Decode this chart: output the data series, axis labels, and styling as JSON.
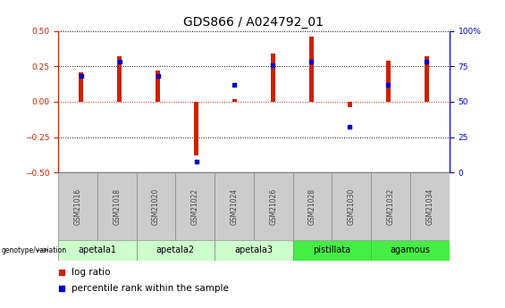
{
  "title": "GDS866 / A024792_01",
  "samples": [
    "GSM21016",
    "GSM21018",
    "GSM21020",
    "GSM21022",
    "GSM21024",
    "GSM21026",
    "GSM21028",
    "GSM21030",
    "GSM21032",
    "GSM21034"
  ],
  "log_ratios": [
    0.21,
    0.32,
    0.22,
    -0.38,
    0.02,
    0.34,
    0.46,
    -0.04,
    0.29,
    0.32
  ],
  "percentile_ranks": [
    68,
    78,
    68,
    8,
    62,
    76,
    78,
    32,
    62,
    78
  ],
  "groups": [
    {
      "name": "apetala1",
      "start": 0,
      "end": 2,
      "color": "#ccffcc"
    },
    {
      "name": "apetala2",
      "start": 2,
      "end": 4,
      "color": "#ccffcc"
    },
    {
      "name": "apetala3",
      "start": 4,
      "end": 6,
      "color": "#ccffcc"
    },
    {
      "name": "pistillata",
      "start": 6,
      "end": 8,
      "color": "#44ee44"
    },
    {
      "name": "agamous",
      "start": 8,
      "end": 10,
      "color": "#44ee44"
    }
  ],
  "ylim": [
    -0.5,
    0.5
  ],
  "yticks_left": [
    -0.5,
    -0.25,
    0.0,
    0.25,
    0.5
  ],
  "yticks_right": [
    0,
    25,
    50,
    75,
    100
  ],
  "bar_color": "#cc2200",
  "dot_color": "#0000cc",
  "title_fontsize": 10,
  "tick_fontsize": 6.5,
  "bar_width": 0.12,
  "dot_size": 16,
  "sample_box_color": "#cccccc",
  "group_box_light": "#ccffcc",
  "group_box_dark": "#44ee44"
}
